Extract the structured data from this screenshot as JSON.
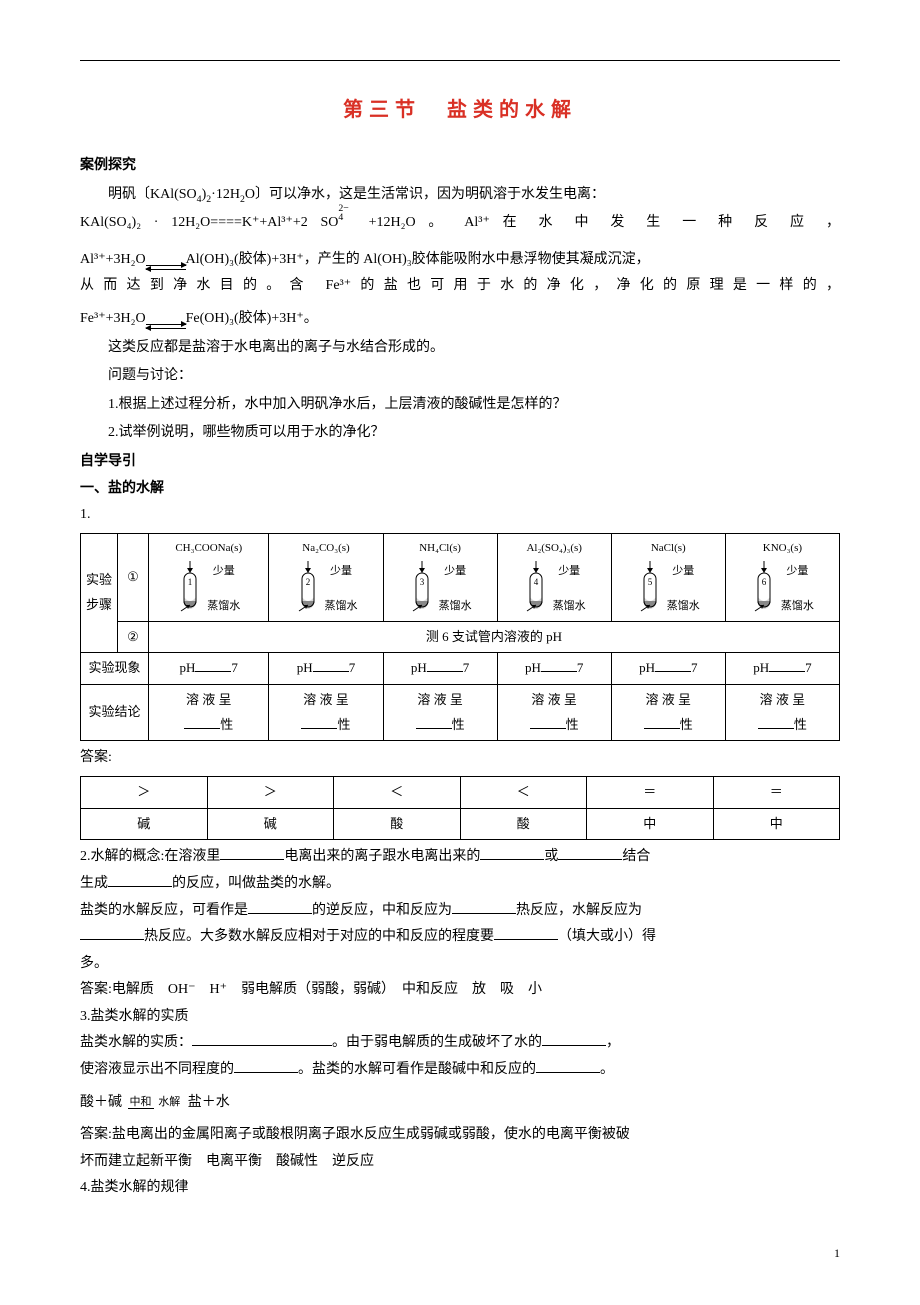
{
  "title": "第三节　盐类的水解",
  "sections": {
    "case_study": "案例探究",
    "self_study": "自学导引",
    "salt_hydrolysis": "一、盐的水解"
  },
  "p1_prefix": "明矾〔KAl(SO",
  "p1_sub1": "4",
  "p1_mid1": ")",
  "p1_sub2": "2",
  "p1_mid2": "·12H",
  "p1_sub3": "2",
  "p1_mid3": "O〕可以净水，这是生活常识，因为明矾溶于水发生电离：",
  "diss_lhs": "KAl(SO₄)₂ · 12H₂O====K⁺+Al³⁺+2",
  "diss_so4": "SO",
  "diss_so4_sup": "2−",
  "diss_so4_sub": "4",
  "diss_rhs_tail": "+12H₂O 。 Al³⁺ 在 水 中 发 生 一 种 反 应 ，",
  "al_eq_l": "Al³⁺+3H₂O",
  "al_eq_r": "Al(OH)₃(胶体)+3H⁺，产生的 Al(OH)₃胶体能吸附水中悬浮物使其凝成沉淀，",
  "al_eq_tail": "从而达到净水目的。含 Fe³⁺的盐也可用于水的净化，净化的原理是一样的，",
  "fe_eq_l": "Fe³⁺+3H₂O",
  "fe_eq_r": "Fe(OH)₃(胶体)+3H⁺。",
  "para_common": "这类反应都是盐溶于水电离出的离子与水结合形成的。",
  "q_label": "问题与讨论：",
  "q1": "1.根据上述过程分析，水中加入明矾净水后，上层清液的酸碱性是怎样的？",
  "q2": "2.试举例说明，哪些物质可以用于水的净化？",
  "table1": {
    "row1_label": "实验步骤",
    "circle1": "①",
    "circle2": "②",
    "measure": "测 6 支试管内溶液的 pH",
    "exp_phenom": "实验现象",
    "exp_concl": "实验结论",
    "tubes": [
      {
        "label": "CH₃COONa(s)",
        "num": "1"
      },
      {
        "label": "Na₂CO₃(s)",
        "num": "2"
      },
      {
        "label": "NH₄Cl(s)",
        "num": "3"
      },
      {
        "label": "Al₂(SO₄)₃(s)",
        "num": "4"
      },
      {
        "label": "NaCl(s)",
        "num": "5"
      },
      {
        "label": "KNO₃(s)",
        "num": "6"
      }
    ],
    "tube_side_top": "少量",
    "tube_side_bot": "蒸馏水",
    "ph_prefix": "pH",
    "ph_suffix": "7",
    "concl_prefix": "溶 液 呈",
    "concl_suffix": "性"
  },
  "answers_label": "答案:",
  "ans_row1": [
    "＞",
    "＞",
    "＜",
    "＜",
    "＝",
    "＝"
  ],
  "ans_row2": [
    "碱",
    "碱",
    "酸",
    "酸",
    "中",
    "中"
  ],
  "h2_intro": "2.水解的概念:在溶液里",
  "h2_mid1": "电离出来的离子跟水电离出来的",
  "h2_mid2": "或",
  "h2_tail": "结合",
  "h2_line2a": "生成",
  "h2_line2b": "的反应，叫做盐类的水解。",
  "h3_a": "盐类的水解反应，可看作是",
  "h3_b": "的逆反应，中和反应为",
  "h3_c": "热反应，水解反应为",
  "h3_d": "热反应。大多数水解反应相对于对应的中和反应的程度要",
  "h3_e": "（填大或小）得",
  "h3_f": "多。",
  "ans2": "答案:电解质　OH⁻　H⁺　弱电解质（弱酸，弱碱）　中和反应　放　吸　小",
  "h4_title": "3.盐类水解的实质",
  "h4_a": "盐类水解的实质：",
  "h4_b": "。由于弱电解质的生成破坏了水的",
  "h4_c": "，",
  "h4_d": "使溶液显示出不同程度的",
  "h4_e": "。盐类的水解可看作是酸碱中和反应的",
  "h4_f": "。",
  "eq_acid_base": "酸＋碱",
  "eq_frac_top": "中和",
  "eq_frac_bot": "水解",
  "eq_salt_water": "盐＋水",
  "ans3": "答案:盐电离出的金属阳离子或酸根阴离子跟水反应生成弱碱或弱酸，使水的电离平衡被破",
  "ans3_b": "坏而建立起新平衡　电离平衡　酸碱性　逆反应",
  "h5_title": "4.盐类水解的规律",
  "page_number": "1"
}
